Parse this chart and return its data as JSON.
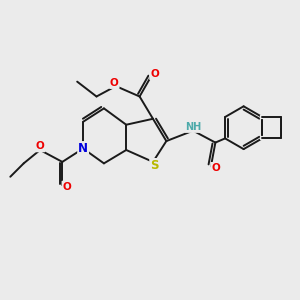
{
  "bg_color": "#ebebeb",
  "bond_color": "#1a1a1a",
  "bond_width": 1.4,
  "atom_colors": {
    "S": "#b8b800",
    "N": "#0000dd",
    "O": "#ee0000",
    "H": "#4daaaa",
    "C": "#1a1a1a"
  },
  "font_size": 7.5
}
